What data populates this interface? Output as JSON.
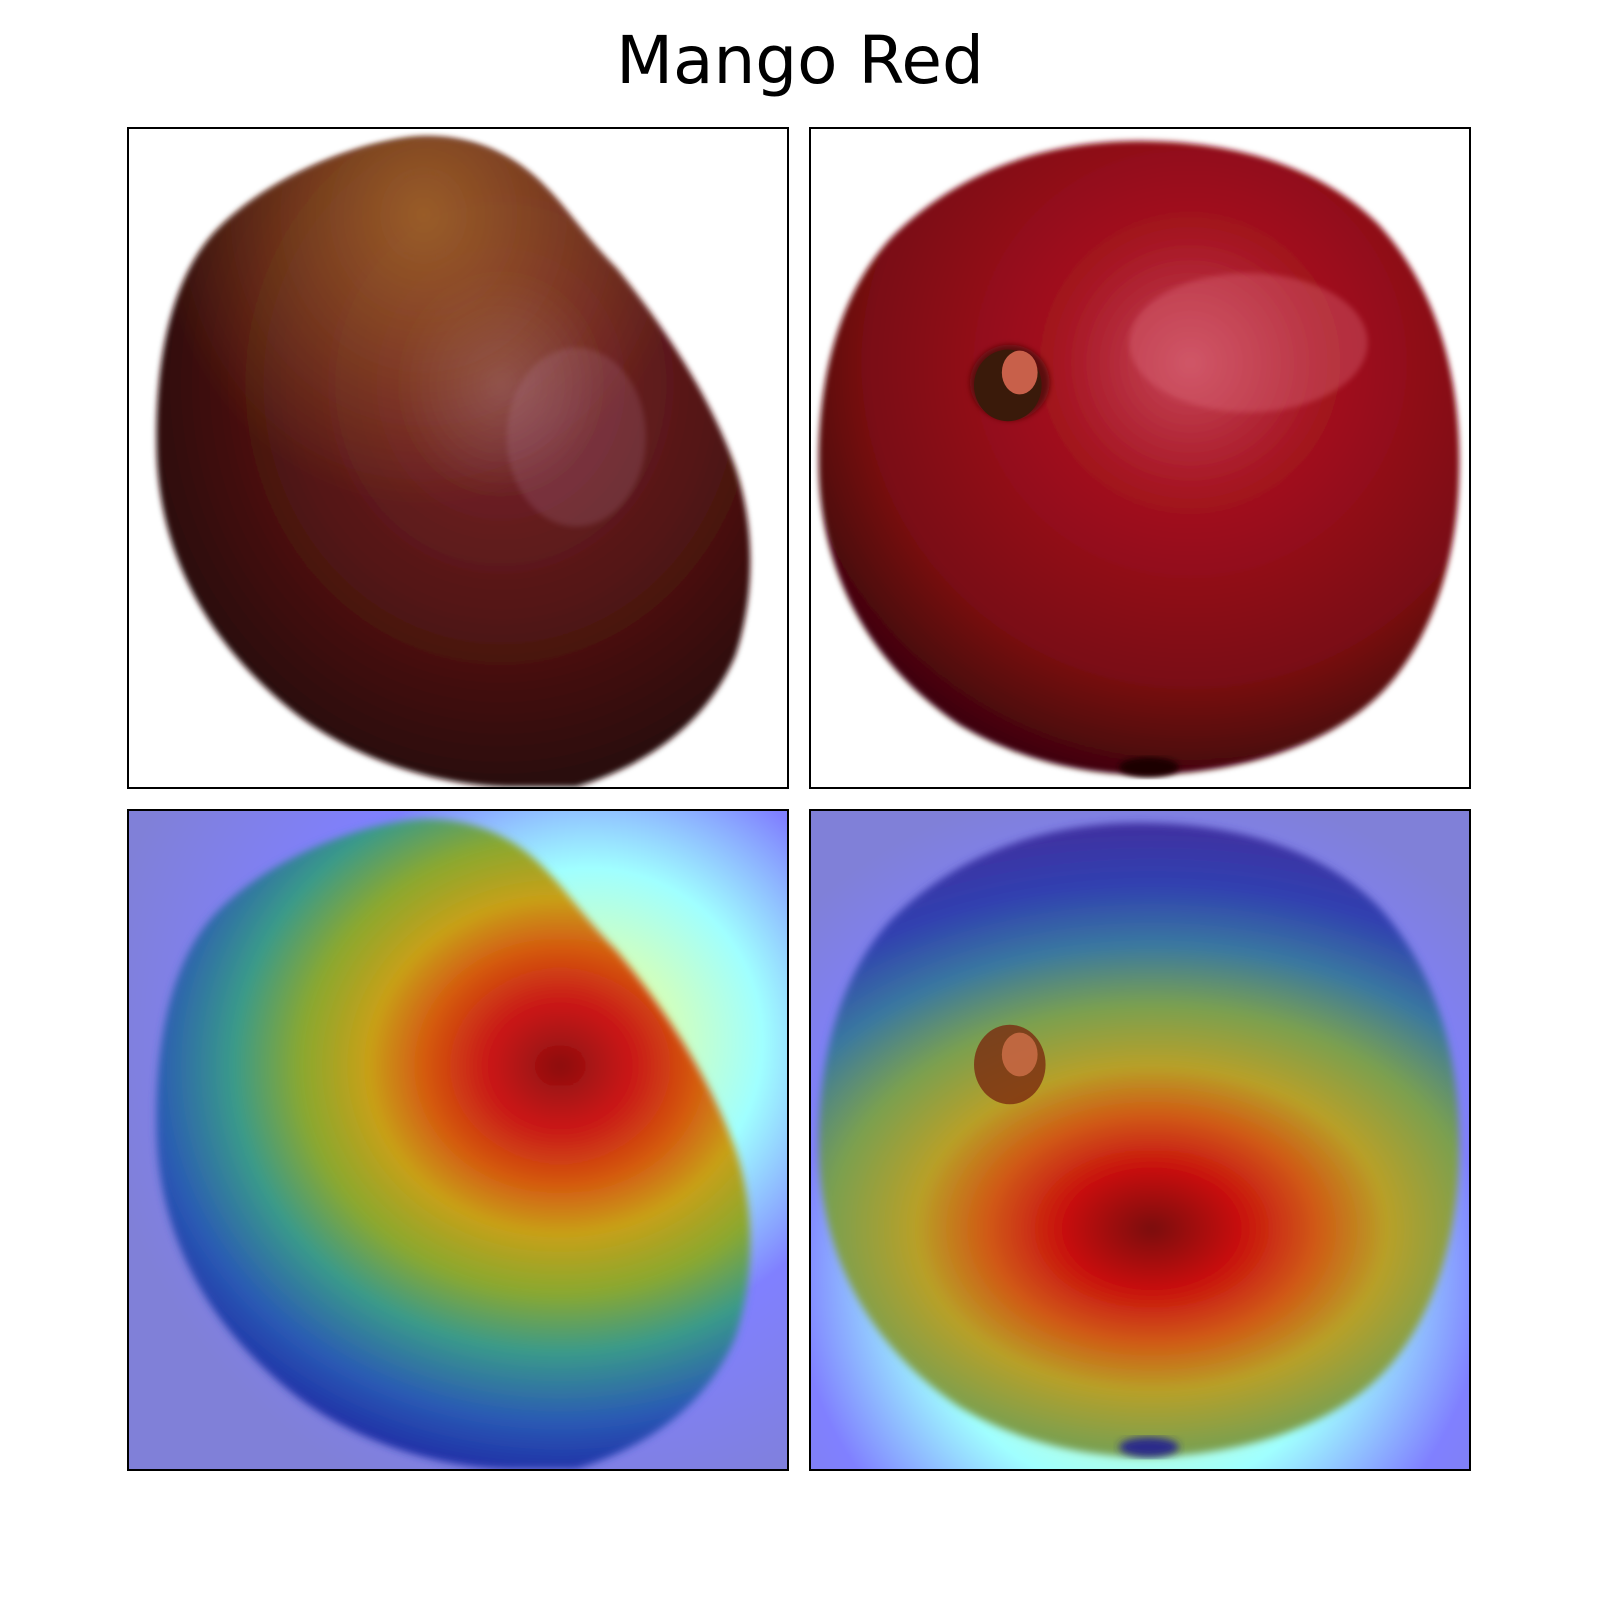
{
  "figure": {
    "title": "Mango Red"
  },
  "panels": [
    {
      "kind": "photo",
      "subject": "mango-side-view"
    },
    {
      "kind": "photo",
      "subject": "mango-with-stem"
    },
    {
      "kind": "heatmap-overlay",
      "subject": "mango-side-view"
    },
    {
      "kind": "heatmap-overlay",
      "subject": "mango-with-stem"
    }
  ],
  "colors": {
    "background": "#ffffff",
    "mango_dark": "#3a0c0c",
    "mango_red": "#9b0f1c",
    "heat_low": "#7b7be6",
    "heat_high": "#c80a0a"
  }
}
